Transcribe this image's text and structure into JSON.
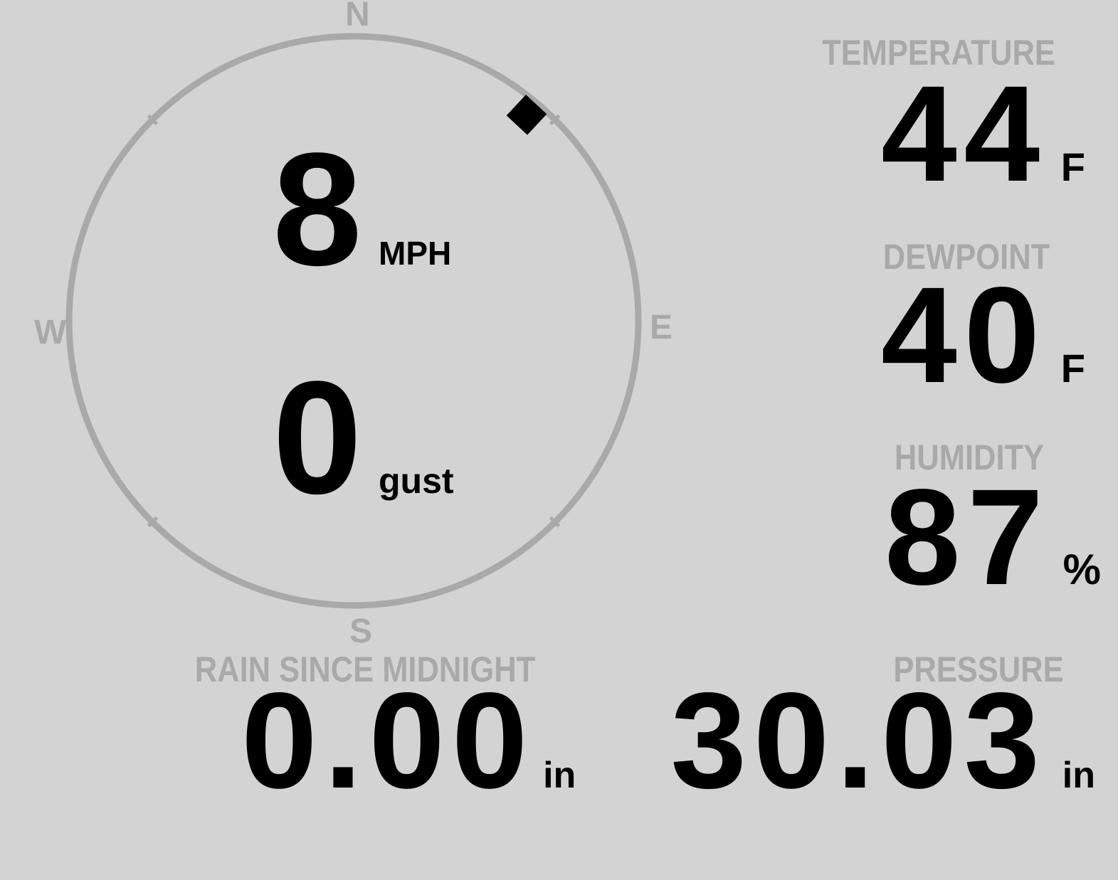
{
  "theme": {
    "background_color": "#d3d3d3",
    "dial_color": "#a9a9a9",
    "label_color": "#a9a9a9",
    "value_color": "#000000",
    "indicator_color": "#000000"
  },
  "wind": {
    "compass": {
      "north": "N",
      "east": "E",
      "south": "S",
      "west": "W"
    },
    "direction_degrees": 40,
    "speed": {
      "value": "8",
      "unit": "MPH"
    },
    "gust": {
      "value": "0",
      "unit": "gust"
    }
  },
  "metrics": {
    "temperature": {
      "label": "TEMPERATURE",
      "value": "44",
      "unit": "F"
    },
    "dewpoint": {
      "label": "DEWPOINT",
      "value": "40",
      "unit": "F"
    },
    "humidity": {
      "label": "HUMIDITY",
      "value": "87",
      "unit": "%"
    },
    "rain": {
      "label": "RAIN SINCE MIDNIGHT",
      "value": "0.00",
      "unit": "in"
    },
    "pressure": {
      "label": "PRESSURE",
      "value": "30.03",
      "unit": "in"
    }
  }
}
